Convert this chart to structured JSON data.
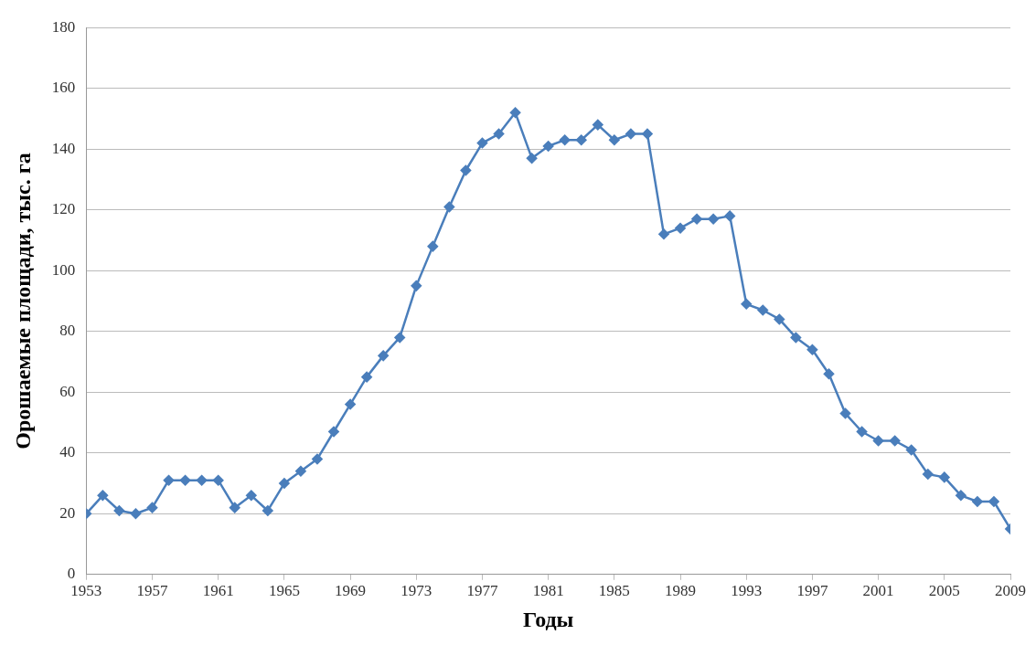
{
  "chart_data": {
    "type": "line",
    "xlabel": "Годы",
    "ylabel": "Орошаемые площади, тыс. га",
    "x": [
      1953,
      1954,
      1955,
      1956,
      1957,
      1958,
      1959,
      1960,
      1961,
      1962,
      1963,
      1964,
      1965,
      1966,
      1967,
      1968,
      1969,
      1970,
      1971,
      1972,
      1973,
      1974,
      1975,
      1976,
      1977,
      1978,
      1979,
      1980,
      1981,
      1982,
      1983,
      1984,
      1985,
      1986,
      1987,
      1988,
      1989,
      1990,
      1991,
      1992,
      1993,
      1994,
      1995,
      1996,
      1997,
      1998,
      1999,
      2000,
      2001,
      2002,
      2003,
      2004,
      2005,
      2006,
      2007,
      2008,
      2009
    ],
    "series": [
      {
        "color": "#4a7ebb",
        "values": [
          20,
          26,
          21,
          20,
          22,
          31,
          31,
          31,
          31,
          22,
          26,
          21,
          30,
          34,
          38,
          47,
          56,
          65,
          72,
          78,
          95,
          108,
          121,
          133,
          142,
          145,
          152,
          137,
          141,
          143,
          143,
          148,
          143,
          145,
          145,
          112,
          114,
          117,
          117,
          118,
          89,
          87,
          84,
          78,
          74,
          66,
          53,
          47,
          44,
          44,
          41,
          33,
          32,
          26,
          24,
          24,
          15
        ]
      }
    ],
    "xlim": [
      1953,
      2009
    ],
    "xticks": [
      1953,
      1957,
      1961,
      1965,
      1969,
      1973,
      1977,
      1981,
      1985,
      1989,
      1993,
      1997,
      2001,
      2005,
      2009
    ],
    "ylim": [
      0,
      180
    ],
    "yticks": [
      0,
      20,
      40,
      60,
      80,
      100,
      120,
      140,
      160,
      180
    ],
    "grid": "y",
    "legend": false,
    "marker": "diamond",
    "line_style": "solid"
  }
}
